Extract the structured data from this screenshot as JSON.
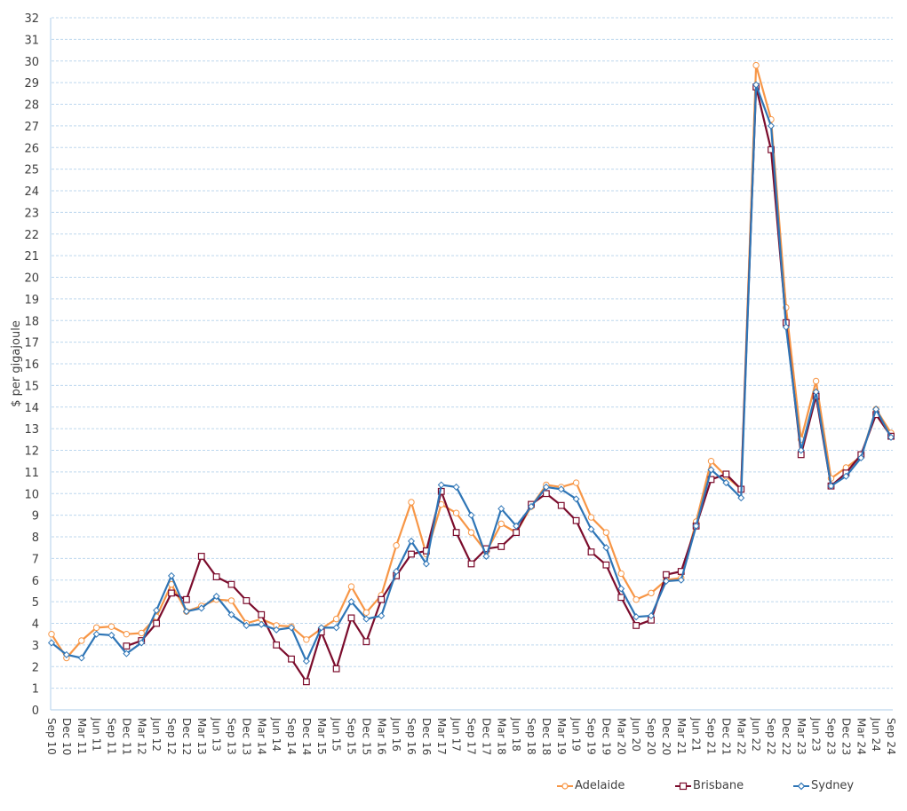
{
  "chart_data": {
    "type": "line",
    "title": "",
    "xlabel": "",
    "ylabel": "$ per gigajoule",
    "ylim": [
      0,
      32
    ],
    "yticks": [
      0,
      1,
      2,
      3,
      4,
      5,
      6,
      7,
      8,
      9,
      10,
      11,
      12,
      13,
      14,
      15,
      16,
      17,
      18,
      19,
      20,
      21,
      22,
      23,
      24,
      25,
      26,
      27,
      28,
      29,
      30,
      31,
      32
    ],
    "grid": true,
    "legend_position": "bottom",
    "x": [
      "Sep 10",
      "Dec 10",
      "Mar 11",
      "Jun 11",
      "Sep 11",
      "Dec 11",
      "Mar 12",
      "Jun 12",
      "Sep 12",
      "Dec 12",
      "Mar 13",
      "Jun 13",
      "Sep 13",
      "Dec 13",
      "Mar 14",
      "Jun 14",
      "Sep 14",
      "Dec 14",
      "Mar 15",
      "Jun 15",
      "Sep 15",
      "Dec 15",
      "Mar 16",
      "Jun 16",
      "Sep 16",
      "Dec 16",
      "Mar 17",
      "Jun 17",
      "Sep 17",
      "Dec 17",
      "Mar 18",
      "Jun 18",
      "Sep 18",
      "Dec 18",
      "Mar 19",
      "Jun 19",
      "Sep 19",
      "Dec 19",
      "Mar 20",
      "Jun 20",
      "Sep 20",
      "Dec 20",
      "Mar 21",
      "Jun 21",
      "Sep 21",
      "Dec 21",
      "Mar 22",
      "Jun 22",
      "Sep 22",
      "Dec 22",
      "Mar 23",
      "Jun 23",
      "Sep 23",
      "Dec 23",
      "Mar 24",
      "Jun 24",
      "Sep 24"
    ],
    "series": [
      {
        "name": "Adelaide",
        "color": "#F79646",
        "marker": "circle",
        "values": [
          3.5,
          2.4,
          3.2,
          3.8,
          3.85,
          3.5,
          3.55,
          4.3,
          5.8,
          4.55,
          4.8,
          5.1,
          5.05,
          4.0,
          4.2,
          3.9,
          3.85,
          3.25,
          3.75,
          4.2,
          5.7,
          4.5,
          5.3,
          7.6,
          9.6,
          7.2,
          9.5,
          9.1,
          8.2,
          7.3,
          8.6,
          8.2,
          9.4,
          10.4,
          10.3,
          10.5,
          8.9,
          8.2,
          6.3,
          5.1,
          5.4,
          6.0,
          6.1,
          8.7,
          11.5,
          10.8,
          10.2,
          29.8,
          27.3,
          18.6,
          12.5,
          15.2,
          10.7,
          11.2,
          11.7,
          13.9,
          12.8
        ]
      },
      {
        "name": "Brisbane",
        "color": "#7B0C2C",
        "marker": "square",
        "values": [
          null,
          null,
          null,
          null,
          null,
          2.95,
          3.2,
          4.0,
          5.4,
          5.1,
          7.1,
          6.15,
          5.8,
          5.05,
          4.4,
          3.0,
          2.35,
          1.3,
          3.6,
          1.9,
          4.25,
          3.15,
          5.1,
          6.2,
          7.2,
          7.35,
          10.1,
          8.2,
          6.75,
          7.45,
          7.55,
          8.2,
          9.5,
          10.0,
          9.45,
          8.75,
          7.3,
          6.7,
          5.2,
          3.9,
          4.15,
          6.25,
          6.4,
          8.5,
          10.65,
          10.9,
          10.2,
          28.8,
          25.9,
          17.9,
          11.8,
          14.5,
          10.35,
          10.95,
          11.8,
          13.65,
          12.65
        ]
      },
      {
        "name": "Sydney",
        "color": "#2E75B6",
        "marker": "diamond",
        "values": [
          3.1,
          2.55,
          2.4,
          3.5,
          3.45,
          2.6,
          3.1,
          4.6,
          6.2,
          4.55,
          4.7,
          5.25,
          4.4,
          3.9,
          3.95,
          3.7,
          3.8,
          2.25,
          3.8,
          3.8,
          5.0,
          4.2,
          4.35,
          6.4,
          7.8,
          6.75,
          10.4,
          10.3,
          9.0,
          7.1,
          9.3,
          8.5,
          9.4,
          10.3,
          10.2,
          9.75,
          8.35,
          7.5,
          5.6,
          4.3,
          4.35,
          5.95,
          6.0,
          8.5,
          11.1,
          10.5,
          9.8,
          28.9,
          27.0,
          17.7,
          12.0,
          14.7,
          10.35,
          10.8,
          11.65,
          13.9,
          12.6
        ]
      }
    ]
  },
  "legend": {
    "items": [
      {
        "label": "Adelaide",
        "color": "#F79646"
      },
      {
        "label": "Brisbane",
        "color": "#7B0C2C"
      },
      {
        "label": "Sydney",
        "color": "#2E75B6"
      }
    ]
  }
}
